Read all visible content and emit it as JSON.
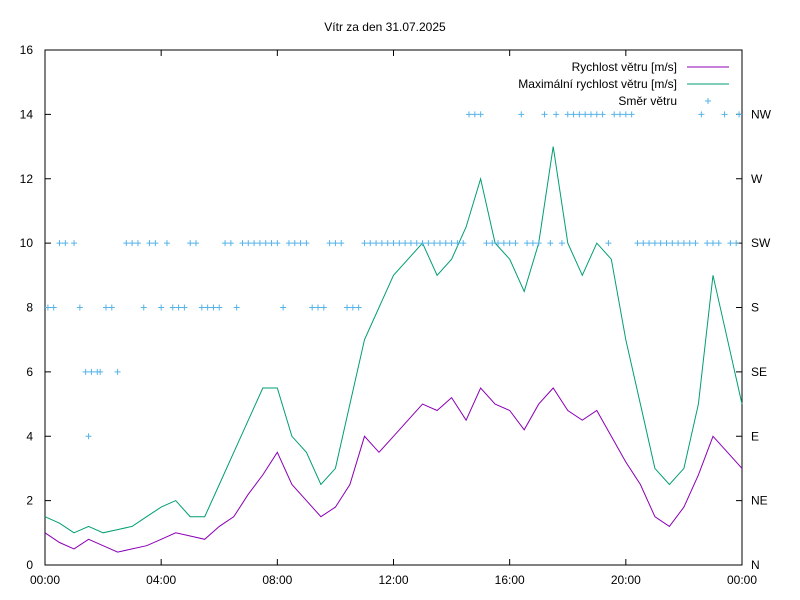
{
  "chart_data": {
    "type": "line",
    "title": "Vítr za den 31.07.2025",
    "xlabel": "",
    "ylabel": "",
    "x_ticks": [
      "00:00",
      "04:00",
      "08:00",
      "12:00",
      "16:00",
      "20:00",
      "00:00"
    ],
    "xlim_hours": [
      0,
      24
    ],
    "y_left": {
      "range": [
        0,
        16
      ],
      "ticks": [
        0,
        2,
        4,
        6,
        8,
        10,
        12,
        14,
        16
      ]
    },
    "y_right": {
      "ticks": [
        "N",
        "NE",
        "E",
        "SE",
        "S",
        "SW",
        "W",
        "NW"
      ],
      "values": [
        0,
        2,
        4,
        6,
        8,
        10,
        12,
        14
      ]
    },
    "grid": false,
    "legend_position": "top-right",
    "series": [
      {
        "name": "Rychlost větru [m/s]",
        "style": "line",
        "color": "#8b00b5",
        "x_hours": [
          0,
          0.5,
          1,
          1.5,
          2,
          2.5,
          3,
          3.5,
          4,
          4.5,
          5,
          5.5,
          6,
          6.5,
          7,
          7.5,
          8,
          8.5,
          9,
          9.5,
          10,
          10.5,
          11,
          11.5,
          12,
          12.5,
          13,
          13.5,
          14,
          14.5,
          15,
          15.5,
          16,
          16.5,
          17,
          17.5,
          18,
          18.5,
          19,
          19.5,
          20,
          20.5,
          21,
          21.5,
          22,
          22.5,
          23,
          23.5,
          24
        ],
        "values": [
          1.0,
          0.7,
          0.5,
          0.8,
          0.6,
          0.4,
          0.5,
          0.6,
          0.8,
          1.0,
          0.9,
          0.8,
          1.2,
          1.5,
          2.2,
          2.8,
          3.5,
          2.5,
          2.0,
          1.5,
          1.8,
          2.5,
          4.0,
          3.5,
          4.0,
          4.5,
          5.0,
          4.8,
          5.2,
          4.5,
          5.5,
          5.0,
          4.8,
          4.2,
          5.0,
          5.5,
          4.8,
          4.5,
          4.8,
          4.0,
          3.2,
          2.5,
          1.5,
          1.2,
          1.8,
          2.8,
          4.0,
          3.5,
          3.0
        ]
      },
      {
        "name": "Maximální rychlost větru [m/s]",
        "style": "line",
        "color": "#009e73",
        "x_hours": [
          0,
          0.5,
          1,
          1.5,
          2,
          2.5,
          3,
          3.5,
          4,
          4.5,
          5,
          5.5,
          6,
          6.5,
          7,
          7.5,
          8,
          8.5,
          9,
          9.5,
          10,
          10.5,
          11,
          11.5,
          12,
          12.5,
          13,
          13.5,
          14,
          14.5,
          15,
          15.5,
          16,
          16.5,
          17,
          17.5,
          18,
          18.5,
          19,
          19.5,
          20,
          20.5,
          21,
          21.5,
          22,
          22.5,
          23,
          23.5,
          24
        ],
        "values": [
          1.5,
          1.3,
          1.0,
          1.2,
          1.0,
          1.1,
          1.2,
          1.5,
          1.8,
          2.0,
          1.5,
          1.5,
          2.5,
          3.5,
          4.5,
          5.5,
          5.5,
          4.0,
          3.5,
          2.5,
          3.0,
          5.0,
          7.0,
          8.0,
          9.0,
          9.5,
          10.0,
          9.0,
          9.5,
          10.5,
          12.0,
          10.0,
          9.5,
          8.5,
          10.0,
          13.0,
          10.0,
          9.0,
          10.0,
          9.5,
          7.0,
          5.0,
          3.0,
          2.5,
          3.0,
          5.0,
          9.0,
          7.0,
          5.0
        ]
      },
      {
        "name": "Směr větru",
        "style": "points",
        "color": "#56b4e9",
        "x_hours": [
          0.1,
          0.3,
          0.5,
          0.7,
          1.0,
          1.2,
          1.4,
          1.5,
          1.6,
          1.8,
          1.9,
          2.1,
          2.3,
          2.5,
          2.8,
          3.0,
          3.2,
          3.4,
          3.6,
          3.8,
          4.0,
          4.2,
          4.4,
          4.6,
          4.8,
          5.0,
          5.2,
          5.4,
          5.6,
          5.8,
          6.0,
          6.2,
          6.4,
          6.6,
          6.8,
          7.0,
          7.2,
          7.4,
          7.6,
          7.8,
          8.0,
          8.2,
          8.4,
          8.6,
          8.8,
          9.0,
          9.2,
          9.4,
          9.6,
          9.8,
          10.0,
          10.2,
          10.4,
          10.6,
          10.8,
          11.0,
          11.2,
          11.4,
          11.6,
          11.8,
          12.0,
          12.2,
          12.4,
          12.6,
          12.8,
          13.0,
          13.2,
          13.4,
          13.6,
          13.8,
          14.0,
          14.2,
          14.4,
          14.6,
          14.8,
          15.0,
          15.2,
          15.4,
          15.6,
          15.8,
          16.0,
          16.2,
          16.4,
          16.6,
          16.8,
          17.0,
          17.2,
          17.4,
          17.6,
          17.8,
          18.0,
          18.2,
          18.4,
          18.6,
          18.8,
          19.0,
          19.2,
          19.4,
          19.6,
          19.8,
          20.0,
          20.2,
          20.4,
          20.6,
          20.8,
          21.0,
          21.2,
          21.4,
          21.6,
          21.8,
          22.0,
          22.2,
          22.4,
          22.6,
          22.8,
          23.0,
          23.2,
          23.4,
          23.6,
          23.8,
          23.9
        ],
        "values": [
          8,
          8,
          10,
          10,
          10,
          8,
          6,
          4,
          6,
          6,
          6,
          8,
          8,
          6,
          10,
          10,
          10,
          8,
          10,
          10,
          8,
          10,
          8,
          8,
          8,
          10,
          10,
          8,
          8,
          8,
          8,
          10,
          10,
          8,
          10,
          10,
          10,
          10,
          10,
          10,
          10,
          8,
          10,
          10,
          10,
          10,
          8,
          8,
          8,
          10,
          10,
          10,
          8,
          8,
          8,
          10,
          10,
          10,
          10,
          10,
          10,
          10,
          10,
          10,
          10,
          10,
          10,
          10,
          10,
          10,
          10,
          10,
          10,
          14,
          14,
          14,
          10,
          10,
          10,
          10,
          10,
          10,
          14,
          10,
          10,
          10,
          14,
          10,
          14,
          10,
          14,
          14,
          14,
          14,
          14,
          14,
          14,
          10,
          14,
          14,
          14,
          14,
          10,
          10,
          10,
          10,
          10,
          10,
          10,
          10,
          10,
          10,
          10,
          14,
          10,
          10,
          10,
          14,
          10,
          10,
          14
        ]
      }
    ]
  }
}
